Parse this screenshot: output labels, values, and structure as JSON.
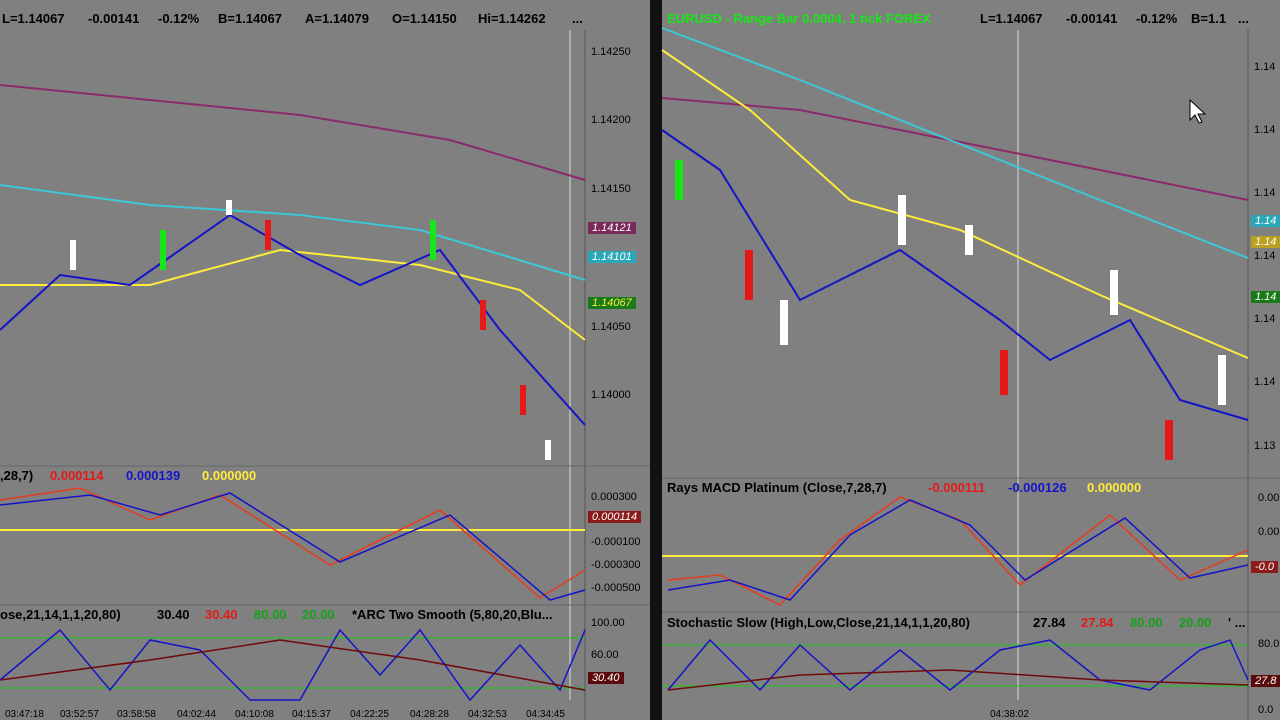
{
  "left": {
    "header": {
      "last": "L=1.14067",
      "change": "-0.00141",
      "pct": "-0.12%",
      "bid": "B=1.14067",
      "ask": "A=1.14079",
      "open": "O=1.14150",
      "high": "Hi=1.14262",
      "more": "..."
    },
    "price_axis": [
      "1.14250",
      "1.14200",
      "1.14150",
      "1.14050",
      "1.14000"
    ],
    "price_tags": [
      "1.14121",
      "1.14101",
      "1.14067"
    ],
    "macd": {
      "label": ",28,7)",
      "v1": "0.000114",
      "v2": "0.000139",
      "v3": "0.000000",
      "axis": [
        "0.000300",
        "-0.000100",
        "-0.000300",
        "-0.000500"
      ],
      "tag": "0.000114"
    },
    "stoch": {
      "label": "ose,21,14,1,1,20,80)",
      "v1": "30.40",
      "v2": "30.40",
      "v3": "80.00",
      "v4": "20.00",
      "arc": "*ARC Two Smooth (5,80,20,Blu...",
      "axis": [
        "100.00",
        "60.00"
      ],
      "tag": "30.40"
    },
    "times": [
      "03:47:18",
      "03:52:57",
      "03:58:58",
      "04:02:44",
      "04:10:08",
      "04:15:37",
      "04:22:25",
      "04:28:28",
      "04:32:53",
      "04:34:45"
    ]
  },
  "right": {
    "header": {
      "instrument": "EURUSD - Range Bar 0.0004, 1 tick  FOREX",
      "last": "L=1.14067",
      "change": "-0.00141",
      "pct": "-0.12%",
      "bid": "B=1.1",
      "more": "..."
    },
    "price_axis": [
      "1.14",
      "1.14",
      "1.14",
      "1.14",
      "1.14",
      "1.14",
      "1.13"
    ],
    "price_tags": [
      "1.14",
      "1.14",
      "1.14"
    ],
    "macd": {
      "label": "Rays MACD Platinum (Close,7,28,7)",
      "v1": "-0.000111",
      "v2": "-0.000126",
      "v3": "0.000000",
      "axis": [
        "0.00",
        "0.00"
      ],
      "tag": "-0.0"
    },
    "stoch": {
      "label": "Stochastic Slow (High,Low,Close,21,14,1,1,20,80)",
      "v1": "27.84",
      "v2": "27.84",
      "v3": "80.00",
      "v4": "20.00",
      "more": "' ...",
      "axis": [
        "80.0",
        "0.0"
      ],
      "tag": "27.8"
    },
    "time": "04:38:02"
  }
}
